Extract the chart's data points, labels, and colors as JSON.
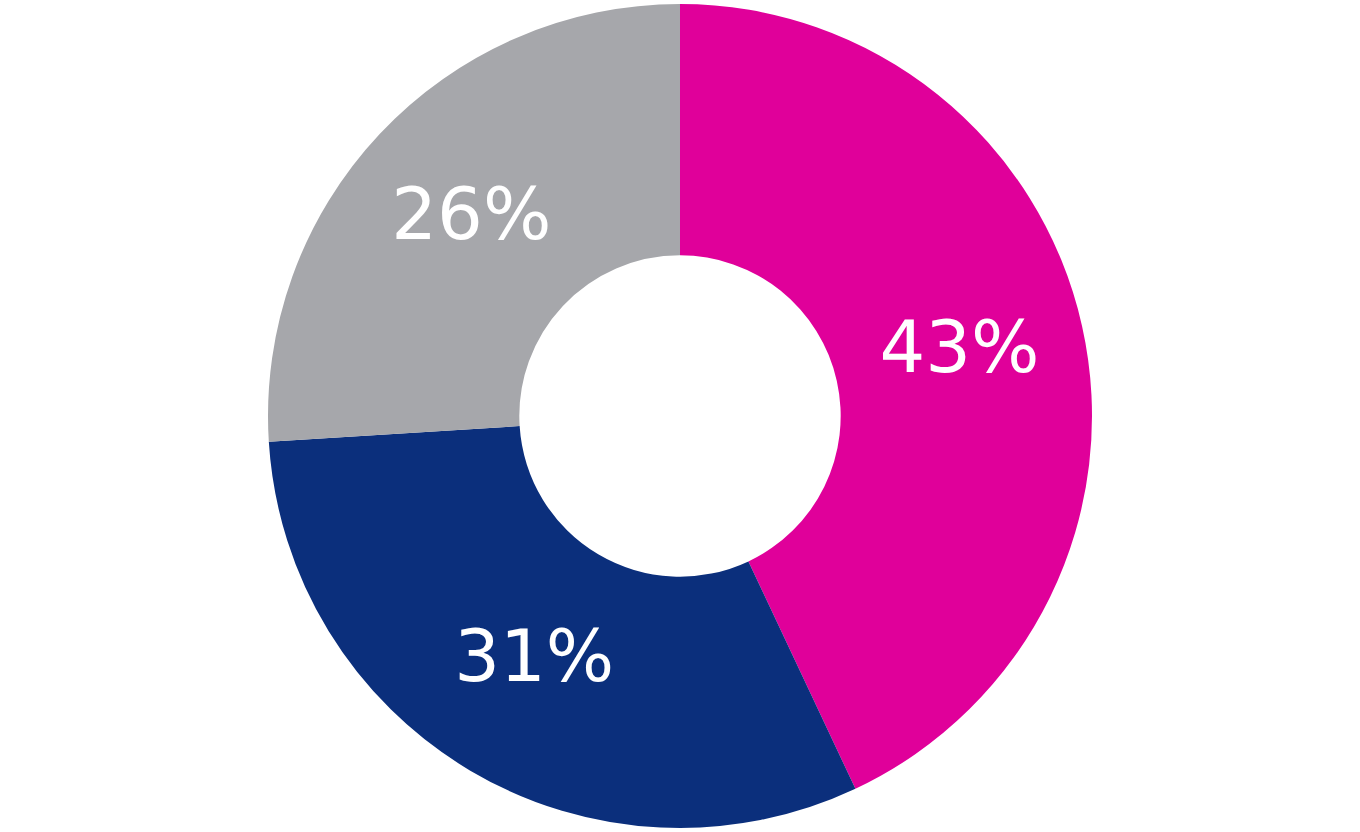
{
  "chart_data": {
    "type": "donut",
    "categories": [
      null,
      null,
      null
    ],
    "values": [
      43,
      31,
      26
    ],
    "colors": [
      "#e0009a",
      "#0b2f7c",
      "#a6a7ab"
    ],
    "value_labels": [
      "43%",
      "31%",
      "26%"
    ],
    "legend": false
  }
}
